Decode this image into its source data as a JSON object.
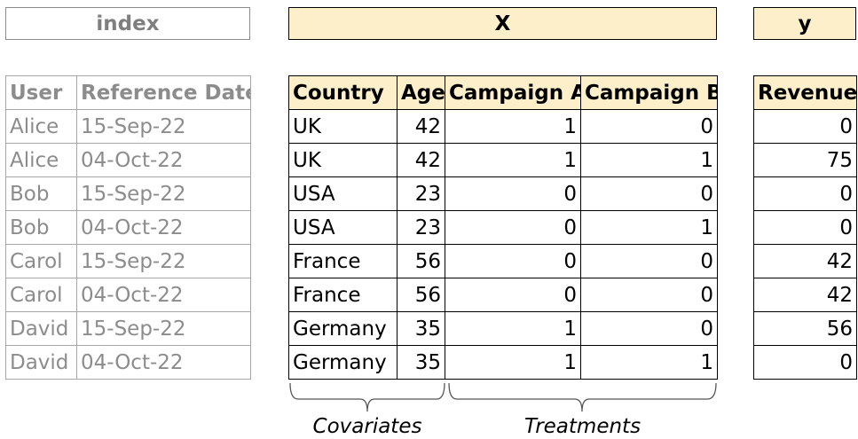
{
  "boxes": {
    "index": "index",
    "x": "X",
    "y": "y"
  },
  "index_table": {
    "headers": [
      "User",
      "Reference Date"
    ],
    "rows": [
      [
        "Alice",
        "15-Sep-22"
      ],
      [
        "Alice",
        "04-Oct-22"
      ],
      [
        "Bob",
        "15-Sep-22"
      ],
      [
        "Bob",
        "04-Oct-22"
      ],
      [
        "Carol",
        "15-Sep-22"
      ],
      [
        "Carol",
        "04-Oct-22"
      ],
      [
        "David",
        "15-Sep-22"
      ],
      [
        "David",
        "04-Oct-22"
      ]
    ]
  },
  "x_table": {
    "headers": [
      "Country",
      "Age",
      "Campaign A",
      "Campaign B"
    ],
    "rows": [
      [
        "UK",
        "42",
        "1",
        "0"
      ],
      [
        "UK",
        "42",
        "1",
        "1"
      ],
      [
        "USA",
        "23",
        "0",
        "0"
      ],
      [
        "USA",
        "23",
        "0",
        "1"
      ],
      [
        "France",
        "56",
        "0",
        "0"
      ],
      [
        "France",
        "56",
        "0",
        "0"
      ],
      [
        "Germany",
        "35",
        "1",
        "0"
      ],
      [
        "Germany",
        "35",
        "1",
        "1"
      ]
    ]
  },
  "y_table": {
    "headers": [
      "Revenue"
    ],
    "rows": [
      [
        "0"
      ],
      [
        "75"
      ],
      [
        "0"
      ],
      [
        "0"
      ],
      [
        "42"
      ],
      [
        "42"
      ],
      [
        "56"
      ],
      [
        "0"
      ]
    ]
  },
  "captions": {
    "covariates": "Covariates",
    "treatments": "Treatments"
  },
  "colors": {
    "header_fill": "#fcefc9",
    "gray_text": "#8c8c8c"
  }
}
